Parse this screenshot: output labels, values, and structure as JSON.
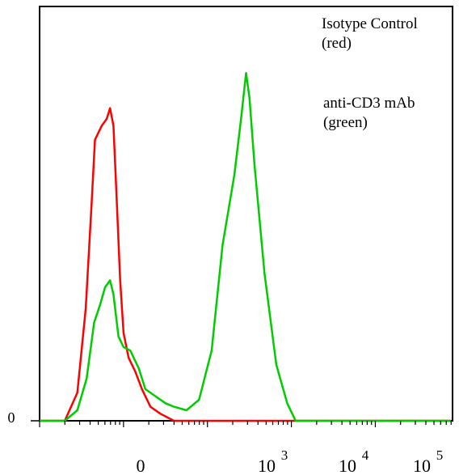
{
  "chart_data": {
    "type": "line",
    "title": "",
    "xlabel": "",
    "ylabel": "",
    "x_scale": "log",
    "x_tick_labels": [
      {
        "text": "0",
        "sup": ""
      },
      {
        "text": "10",
        "sup": "3"
      },
      {
        "text": "10",
        "sup": "4"
      },
      {
        "text": "10",
        "sup": "5"
      }
    ],
    "y_tick_labels": [
      "0"
    ],
    "grid": false,
    "legend": {
      "placement": "top-right",
      "entries": [
        {
          "line1": "Isotype Control",
          "line2": "(red)"
        },
        {
          "line1": "anti-CD3 mAb",
          "line2": "(green)"
        }
      ]
    },
    "series": [
      {
        "color": "#ff0000",
        "points": [
          [
            0.9,
            0
          ],
          [
            1.2,
            0.0
          ],
          [
            1.35,
            0.08
          ],
          [
            1.45,
            0.32
          ],
          [
            1.52,
            0.62
          ],
          [
            1.56,
            0.8
          ],
          [
            1.6,
            0.82
          ],
          [
            1.64,
            0.84
          ],
          [
            1.7,
            0.86
          ],
          [
            1.74,
            0.89
          ],
          [
            1.78,
            0.84
          ],
          [
            1.82,
            0.62
          ],
          [
            1.86,
            0.4
          ],
          [
            1.9,
            0.25
          ],
          [
            1.96,
            0.18
          ],
          [
            2.04,
            0.14
          ],
          [
            2.12,
            0.09
          ],
          [
            2.22,
            0.04
          ],
          [
            2.34,
            0.02
          ],
          [
            2.5,
            0.0
          ],
          [
            5.8,
            0.0
          ]
        ]
      },
      {
        "color": "#00cc00",
        "points": [
          [
            0.9,
            0
          ],
          [
            1.2,
            0.0
          ],
          [
            1.35,
            0.03
          ],
          [
            1.46,
            0.12
          ],
          [
            1.55,
            0.28
          ],
          [
            1.62,
            0.33
          ],
          [
            1.68,
            0.38
          ],
          [
            1.74,
            0.4
          ],
          [
            1.78,
            0.36
          ],
          [
            1.84,
            0.24
          ],
          [
            1.9,
            0.21
          ],
          [
            1.98,
            0.2
          ],
          [
            2.08,
            0.15
          ],
          [
            2.16,
            0.09
          ],
          [
            2.28,
            0.07
          ],
          [
            2.4,
            0.05
          ],
          [
            2.5,
            0.04
          ],
          [
            2.65,
            0.03
          ],
          [
            2.8,
            0.06
          ],
          [
            2.95,
            0.2
          ],
          [
            3.08,
            0.5
          ],
          [
            3.22,
            0.7
          ],
          [
            3.3,
            0.86
          ],
          [
            3.36,
            0.99
          ],
          [
            3.4,
            0.92
          ],
          [
            3.46,
            0.73
          ],
          [
            3.58,
            0.42
          ],
          [
            3.72,
            0.16
          ],
          [
            3.85,
            0.05
          ],
          [
            3.95,
            0.0
          ],
          [
            5.8,
            0.0
          ]
        ]
      }
    ],
    "axis_color": "#000000"
  }
}
